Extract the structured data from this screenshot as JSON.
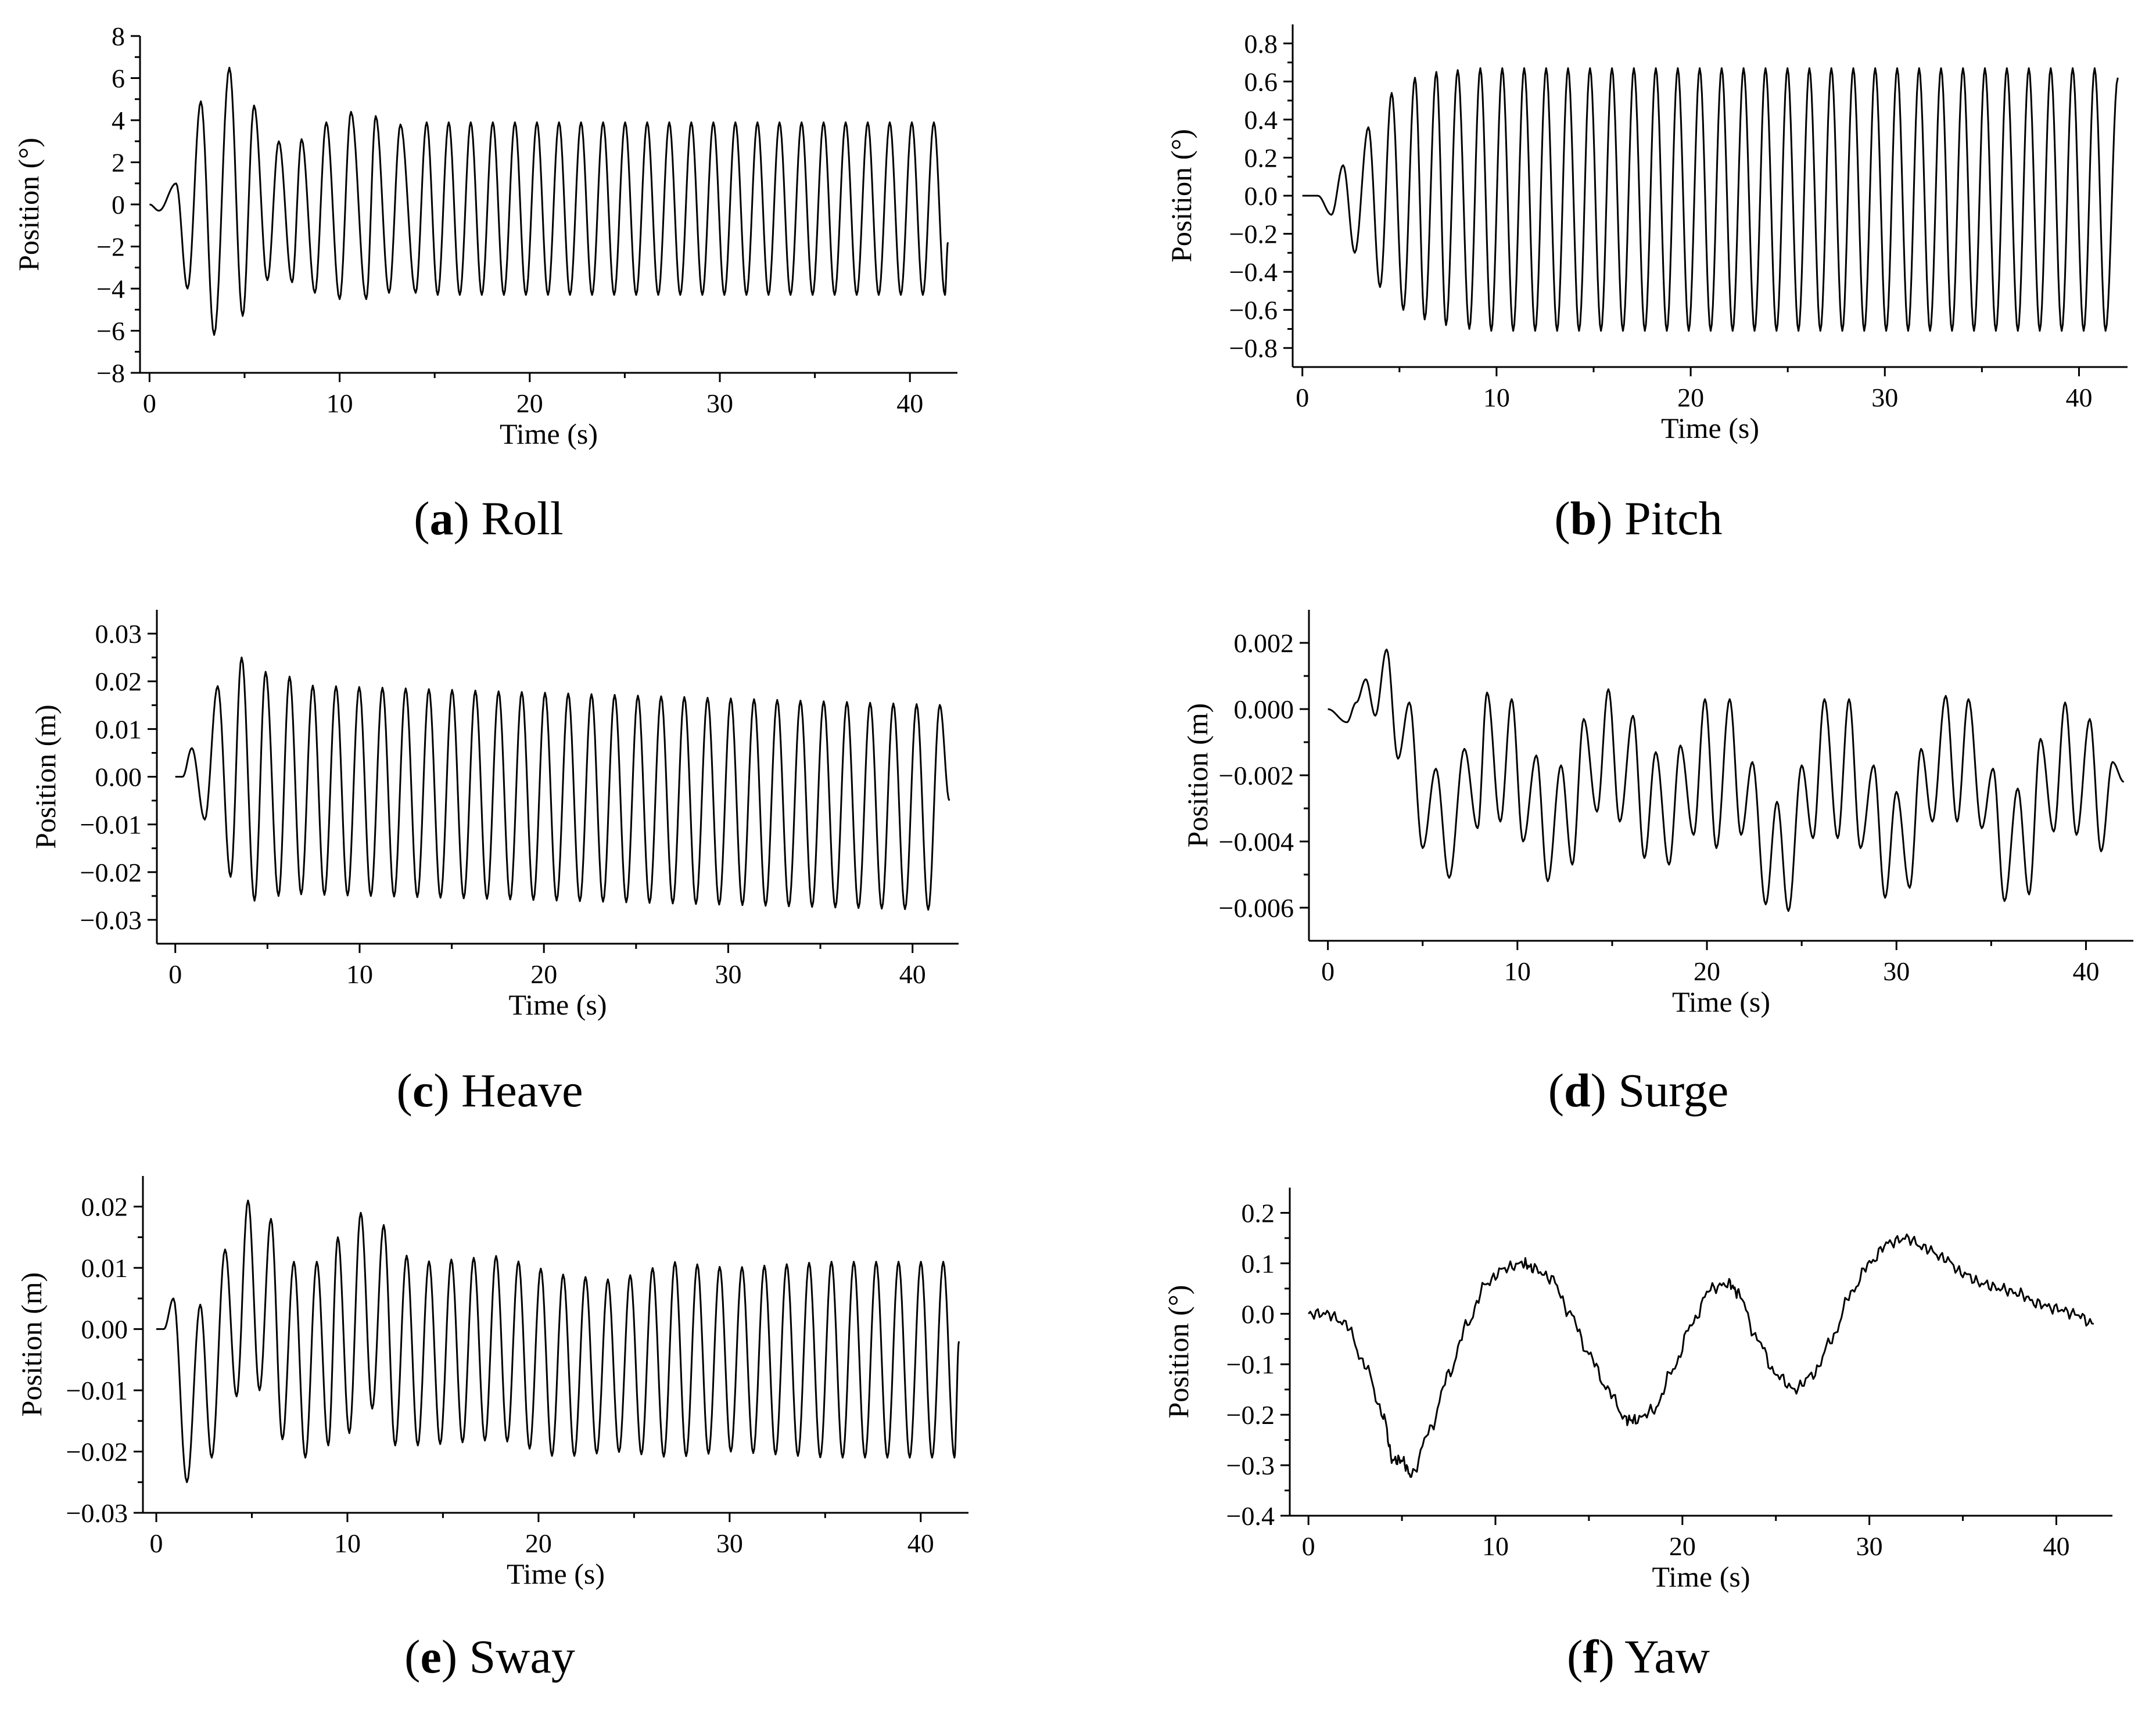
{
  "chart_data": [
    {
      "type": "line",
      "panel": "a",
      "caption_letter": "a",
      "caption_text": "Roll",
      "xlabel": "Time (s)",
      "ylabel": "Position (°)",
      "xlim": [
        -0.5,
        42.5
      ],
      "ylim": [
        -8,
        8
      ],
      "xticks": [
        0,
        10,
        20,
        30,
        40
      ],
      "xtick_labels": [
        "0",
        "10",
        "20",
        "30",
        "40"
      ],
      "yticks": [
        -8,
        -6,
        -4,
        -2,
        0,
        2,
        4,
        6,
        8
      ],
      "ytick_labels": [
        "−8",
        "−6",
        "−4",
        "−2",
        "0",
        "2",
        "4",
        "6",
        "8"
      ],
      "period": 1.16,
      "t0": 0.8,
      "t_end": 42.0,
      "series": [
        {
          "name": "Roll",
          "x": [
            0,
            0.5,
            1.4,
            2.0,
            2.7,
            3.4,
            4.2,
            4.9,
            5.5,
            6.2,
            6.8,
            7.5,
            8.0,
            8.7,
            9.3,
            10.0,
            10.6,
            11.4,
            11.9,
            12.6,
            13.2,
            14.0,
            42.0
          ],
          "y": [
            0,
            -0.3,
            1.0,
            -4.0,
            4.9,
            -6.2,
            6.5,
            -5.3,
            4.7,
            -3.6,
            3.0,
            -3.7,
            3.1,
            -4.2,
            3.9,
            -4.5,
            4.4,
            -4.5,
            4.2,
            -4.2,
            3.8,
            -4.2,
            -1.8
          ]
        }
      ],
      "sustained": {
        "max": 3.9,
        "min": -4.3
      }
    },
    {
      "type": "line",
      "panel": "b",
      "caption_letter": "b",
      "caption_text": "Pitch",
      "xlabel": "Time (s)",
      "ylabel": "Position (°)",
      "xlim": [
        -0.5,
        42.5
      ],
      "ylim": [
        -0.9,
        0.9
      ],
      "xticks": [
        0,
        10,
        20,
        30,
        40
      ],
      "xtick_labels": [
        "0",
        "10",
        "20",
        "30",
        "40"
      ],
      "yticks": [
        -0.8,
        -0.6,
        -0.4,
        -0.2,
        0.0,
        0.2,
        0.4,
        0.6,
        0.8
      ],
      "ytick_labels": [
        "−0.8",
        "−0.6",
        "−0.4",
        "−0.2",
        "0.0",
        "0.2",
        "0.4",
        "0.6",
        "0.8"
      ],
      "period": 1.13,
      "t0": 1.0,
      "t_end": 42.0,
      "series": [
        {
          "name": "Pitch",
          "x": [
            0,
            0.8,
            1.5,
            2.1,
            2.7,
            3.4,
            4.0,
            4.6,
            5.2,
            5.8,
            6.3,
            6.9,
            7.4,
            8.0,
            8.6,
            42.0
          ],
          "y": [
            0,
            0.0,
            -0.1,
            0.16,
            -0.3,
            0.36,
            -0.48,
            0.54,
            -0.6,
            0.62,
            -0.65,
            0.65,
            -0.68,
            0.66,
            -0.7,
            0.62
          ]
        }
      ],
      "sustained": {
        "max": 0.67,
        "min": -0.71
      }
    },
    {
      "type": "line",
      "panel": "c",
      "caption_letter": "c",
      "caption_text": "Heave",
      "xlabel": "Time (s)",
      "ylabel": "Position (m)",
      "xlim": [
        -1.0,
        42.5
      ],
      "ylim": [
        -0.035,
        0.035
      ],
      "xticks": [
        0,
        10,
        20,
        30,
        40
      ],
      "xtick_labels": [
        "0",
        "10",
        "20",
        "30",
        "40"
      ],
      "yticks": [
        -0.03,
        -0.02,
        -0.01,
        0.0,
        0.01,
        0.02,
        0.03
      ],
      "ytick_labels": [
        "−0.03",
        "−0.02",
        "−0.01",
        "0.00",
        "0.01",
        "0.02",
        "0.03"
      ],
      "period": 1.26,
      "t0": 0.5,
      "t_end": 42.0,
      "series": [
        {
          "name": "Heave",
          "x": [
            0,
            0.4,
            0.9,
            1.6,
            2.3,
            3.0,
            3.6,
            4.3,
            4.9,
            5.6,
            6.2,
            42.0
          ],
          "y": [
            0,
            0.0,
            0.006,
            -0.009,
            0.019,
            -0.021,
            0.025,
            -0.026,
            0.022,
            -0.025,
            0.021,
            -0.005
          ]
        }
      ],
      "sustained": {
        "max_start": 0.02,
        "max_end": 0.015,
        "min_start": -0.024,
        "min_end": -0.028
      }
    },
    {
      "type": "line",
      "panel": "d",
      "caption_letter": "d",
      "caption_text": "Surge",
      "xlabel": "Time (s)",
      "ylabel": "Position (m)",
      "xlim": [
        -1.0,
        42.5
      ],
      "ylim": [
        -0.007,
        0.003
      ],
      "xticks": [
        0,
        10,
        20,
        30,
        40
      ],
      "xtick_labels": [
        "0",
        "10",
        "20",
        "30",
        "40"
      ],
      "yticks": [
        -0.006,
        -0.004,
        -0.002,
        0.0,
        0.002
      ],
      "ytick_labels": [
        "−0.006",
        "−0.004",
        "−0.002",
        "0.000",
        "0.002"
      ],
      "series": [
        {
          "name": "Surge",
          "x": [
            0,
            1.0,
            1.5,
            2.0,
            2.5,
            3.1,
            3.7,
            4.3,
            5.0,
            5.7,
            6.4,
            7.2,
            7.9,
            8.4,
            9.1,
            9.7,
            10.3,
            11.0,
            11.6,
            12.3,
            12.9,
            13.5,
            14.2,
            14.8,
            15.4,
            16.1,
            16.7,
            17.3,
            18.0,
            18.6,
            19.3,
            19.9,
            20.5,
            21.2,
            21.8,
            22.4,
            23.1,
            23.7,
            24.3,
            25.0,
            25.6,
            26.2,
            26.9,
            27.5,
            28.1,
            28.8,
            29.4,
            30.0,
            30.7,
            31.3,
            31.9,
            32.6,
            33.2,
            33.8,
            34.5,
            35.1,
            35.7,
            36.4,
            37.0,
            37.6,
            38.3,
            38.9,
            39.5,
            40.2,
            40.8,
            41.4,
            42.0
          ],
          "y": [
            0,
            -0.0004,
            0.0002,
            0.0009,
            -0.0002,
            0.0018,
            -0.0015,
            0.0002,
            -0.0042,
            -0.0018,
            -0.0051,
            -0.0012,
            -0.0036,
            0.0005,
            -0.0034,
            0.0003,
            -0.004,
            -0.0014,
            -0.0052,
            -0.0017,
            -0.0047,
            -0.0003,
            -0.0031,
            0.0006,
            -0.0034,
            -0.0002,
            -0.0045,
            -0.0013,
            -0.0047,
            -0.0011,
            -0.0038,
            0.0003,
            -0.0042,
            0.0003,
            -0.0038,
            -0.0016,
            -0.0059,
            -0.0028,
            -0.0061,
            -0.0017,
            -0.0039,
            0.0003,
            -0.0039,
            0.0003,
            -0.0042,
            -0.0017,
            -0.0057,
            -0.0025,
            -0.0054,
            -0.0012,
            -0.0034,
            0.0004,
            -0.0034,
            0.0003,
            -0.0036,
            -0.0018,
            -0.0058,
            -0.0024,
            -0.0056,
            -0.0009,
            -0.0037,
            0.0002,
            -0.0038,
            -0.0003,
            -0.0043,
            -0.0016,
            -0.0022
          ]
        }
      ]
    },
    {
      "type": "line",
      "panel": "e",
      "caption_letter": "e",
      "caption_text": "Sway",
      "xlabel": "Time (s)",
      "ylabel": "Position (m)",
      "xlim": [
        -0.7,
        42.5
      ],
      "ylim": [
        -0.03,
        0.025
      ],
      "xticks": [
        0,
        10,
        20,
        30,
        40
      ],
      "xtick_labels": [
        "0",
        "10",
        "20",
        "30",
        "40"
      ],
      "yticks": [
        -0.03,
        -0.02,
        -0.01,
        0.0,
        0.01,
        0.02
      ],
      "ytick_labels": [
        "−0.03",
        "−0.02",
        "−0.01",
        "0.00",
        "0.01",
        "0.02"
      ],
      "period": 1.17,
      "t0": 0.35,
      "t_end": 42.0,
      "series": [
        {
          "name": "Sway",
          "x": [
            0,
            0.4,
            0.9,
            1.6,
            2.3,
            2.9,
            3.6,
            4.2,
            4.8,
            5.4,
            6.0,
            6.6,
            7.2,
            7.8,
            8.4,
            9.0,
            9.5,
            10.1,
            10.7,
            11.3,
            11.9,
            12.5,
            13.1,
            42.0
          ],
          "y": [
            0,
            0.0,
            0.005,
            -0.025,
            0.004,
            -0.021,
            0.013,
            -0.011,
            0.021,
            -0.01,
            0.018,
            -0.018,
            0.011,
            -0.021,
            0.011,
            -0.019,
            0.015,
            -0.017,
            0.019,
            -0.013,
            0.017,
            -0.019,
            0.012,
            -0.002
          ]
        }
      ],
      "envelope": {
        "t": [
          0,
          5,
          8,
          11,
          14,
          18,
          21,
          24,
          27,
          30,
          35,
          42
        ],
        "amp": [
          0.008,
          0.015,
          0.016,
          0.017,
          0.015,
          0.015,
          0.015,
          0.014,
          0.016,
          0.015,
          0.016,
          0.016
        ],
        "mid": [
          0,
          -0.001,
          -0.004,
          -0.002,
          -0.004,
          -0.003,
          -0.006,
          -0.006,
          -0.005,
          -0.005,
          -0.005,
          -0.005
        ]
      }
    },
    {
      "type": "line",
      "panel": "f",
      "caption_letter": "f",
      "caption_text": "Yaw",
      "xlabel": "Time (s)",
      "ylabel": "Position (°)",
      "xlim": [
        -1.0,
        43.0
      ],
      "ylim": [
        -0.4,
        0.25
      ],
      "xticks": [
        0,
        10,
        20,
        30,
        40
      ],
      "xtick_labels": [
        "0",
        "10",
        "20",
        "30",
        "40"
      ],
      "yticks": [
        -0.4,
        -0.3,
        -0.2,
        -0.1,
        0.0,
        0.1,
        0.2
      ],
      "ytick_labels": [
        "−0.4",
        "−0.3",
        "−0.2",
        "−0.1",
        "0.0",
        "0.1",
        "0.2"
      ],
      "series": [
        {
          "name": "Yaw",
          "x": [
            0,
            1.0,
            2.0,
            3.0,
            4.0,
            4.5,
            5.0,
            5.5,
            6.5,
            7.5,
            8.5,
            9.5,
            10.5,
            11.5,
            12.0,
            13.0,
            14.0,
            15.0,
            16.0,
            17.0,
            17.5,
            18.5,
            19.5,
            20.5,
            21.5,
            22.5,
            23.0,
            24.0,
            25.0,
            26.0,
            27.0,
            28.0,
            29.0,
            30.0,
            31.0,
            32.0,
            33.0,
            34.0,
            35.0,
            36.0,
            37.0,
            38.0,
            39.0,
            40.0,
            41.0,
            42.0
          ],
          "y": [
            0.0,
            0.0,
            -0.02,
            -0.1,
            -0.2,
            -0.29,
            -0.29,
            -0.32,
            -0.23,
            -0.12,
            -0.02,
            0.06,
            0.09,
            0.1,
            0.09,
            0.07,
            0.0,
            -0.08,
            -0.15,
            -0.21,
            -0.21,
            -0.19,
            -0.11,
            -0.02,
            0.05,
            0.06,
            0.04,
            -0.05,
            -0.12,
            -0.15,
            -0.12,
            -0.05,
            0.04,
            0.1,
            0.14,
            0.15,
            0.13,
            0.11,
            0.08,
            0.06,
            0.05,
            0.04,
            0.02,
            0.01,
            0.0,
            -0.02
          ]
        }
      ]
    }
  ]
}
